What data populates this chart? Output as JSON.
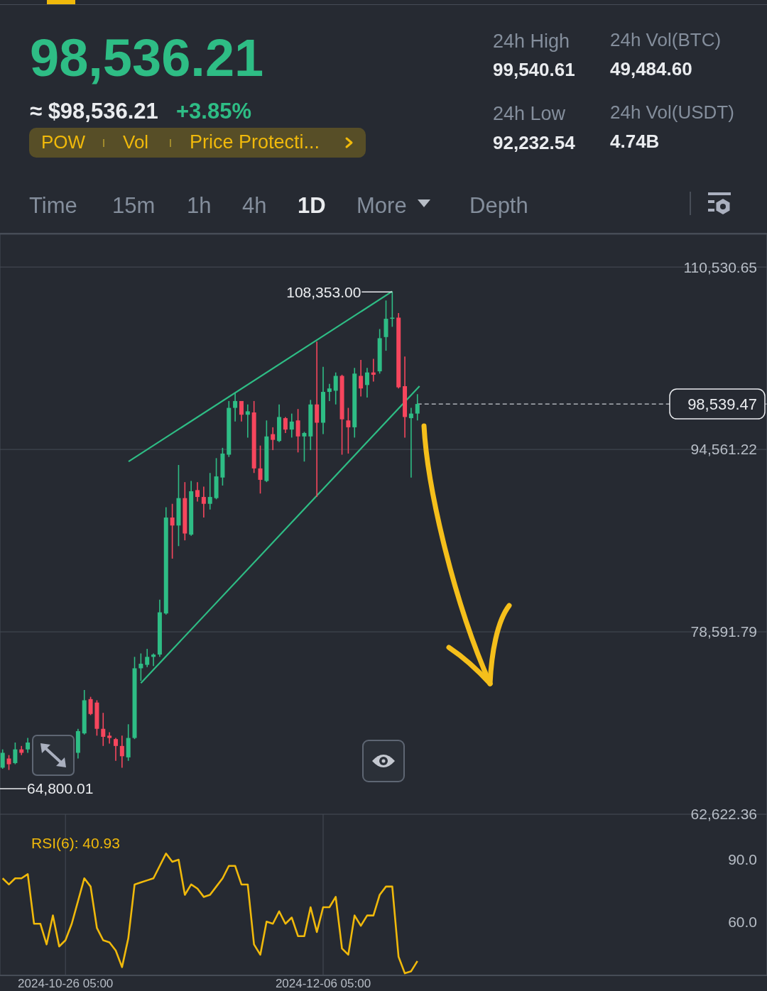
{
  "chart_data": [
    {
      "type": "other",
      "annotations": [
        "98,536.21",
        "≈ $98,536.21",
        "+3.85%",
        "POW",
        "Vol",
        "Price Protecti...",
        "24h High",
        "99,540.61",
        "24h Vol(BTC)",
        "49,484.60",
        "24h Low",
        "92,232.54",
        "24h Vol(USDT)",
        "4.74B",
        "Time",
        "15m",
        "1h",
        "4h",
        "1D",
        "More",
        "Depth"
      ]
    },
    {
      "type": "candlestick",
      "x": [
        "2024-10-16T05:00",
        "2024-10-17T05:00",
        "2024-10-18T05:00",
        "2024-10-19T05:00",
        "2024-10-20T05:00",
        "2024-10-28T05:00",
        "2024-10-29T05:00",
        "2024-10-30T05:00",
        "2024-10-31T05:00",
        "2024-11-01T05:00",
        "2024-11-02T05:00",
        "2024-11-03T05:00",
        "2024-11-04T05:00",
        "2024-11-05T05:00",
        "2024-11-06T05:00",
        "2024-11-07T05:00",
        "2024-11-08T05:00",
        "2024-11-09T05:00",
        "2024-11-10T05:00",
        "2024-11-11T05:00",
        "2024-11-12T05:00",
        "2024-11-13T05:00",
        "2024-11-14T05:00",
        "2024-11-15T05:00",
        "2024-11-16T05:00",
        "2024-11-17T05:00",
        "2024-11-18T05:00",
        "2024-11-19T05:00",
        "2024-11-20T05:00",
        "2024-11-21T05:00",
        "2024-11-22T05:00",
        "2024-11-23T05:00",
        "2024-11-24T05:00",
        "2024-11-25T05:00",
        "2024-11-26T05:00",
        "2024-11-27T05:00",
        "2024-11-28T05:00",
        "2024-11-29T05:00",
        "2024-11-30T05:00",
        "2024-12-01T05:00",
        "2024-12-02T05:00",
        "2024-12-03T05:00",
        "2024-12-04T05:00",
        "2024-12-05T05:00",
        "2024-12-06T05:00",
        "2024-12-07T05:00",
        "2024-12-08T05:00",
        "2024-12-09T05:00",
        "2024-12-10T05:00",
        "2024-12-11T05:00",
        "2024-12-12T05:00",
        "2024-12-13T05:00",
        "2024-12-14T05:00",
        "2024-12-15T05:00",
        "2024-12-16T05:00",
        "2024-12-17T05:00",
        "2024-12-18T05:00",
        "2024-12-19T05:00",
        "2024-12-20T05:00",
        "2024-12-21T05:00"
      ],
      "ohlc": [
        [
          66700,
          68300,
          66600,
          68000
        ],
        [
          67500,
          67800,
          66500,
          67000
        ],
        [
          67100,
          68900,
          67000,
          68300
        ],
        [
          68300,
          68600,
          67800,
          68000
        ],
        [
          68300,
          69300,
          68000,
          68900
        ],
        [
          68000,
          70100,
          67500,
          69900
        ],
        [
          69700,
          73500,
          69600,
          72600
        ],
        [
          72700,
          72900,
          71300,
          71400
        ],
        [
          72400,
          72600,
          69500,
          70100
        ],
        [
          70100,
          71500,
          68600,
          69400
        ],
        [
          69500,
          69800,
          68800,
          69300
        ],
        [
          69200,
          69300,
          67300,
          68600
        ],
        [
          68600,
          69500,
          66700,
          67700
        ],
        [
          67600,
          70500,
          67300,
          69300
        ],
        [
          69300,
          76400,
          69200,
          75400
        ],
        [
          75400,
          76700,
          74300,
          75800
        ],
        [
          75700,
          77100,
          75500,
          76400
        ],
        [
          76400,
          76700,
          75600,
          76600
        ],
        [
          76600,
          81400,
          76400,
          80300
        ],
        [
          80200,
          89500,
          80100,
          88600
        ],
        [
          88600,
          89800,
          85000,
          87900
        ],
        [
          87900,
          93200,
          86100,
          90300
        ],
        [
          90300,
          91700,
          86600,
          87200
        ],
        [
          87100,
          91800,
          87000,
          90900
        ],
        [
          91000,
          91700,
          90000,
          90400
        ],
        [
          90400,
          91300,
          88600,
          89800
        ],
        [
          89800,
          92500,
          89300,
          90400
        ],
        [
          90300,
          93800,
          90200,
          92200
        ],
        [
          92100,
          94700,
          91400,
          94200
        ],
        [
          94100,
          98800,
          93900,
          98200
        ],
        [
          98200,
          99500,
          97000,
          98800
        ],
        [
          98800,
          98800,
          97000,
          97600
        ],
        [
          97600,
          98500,
          95600,
          97900
        ],
        [
          97800,
          98800,
          92500,
          92900
        ],
        [
          92900,
          94900,
          90700,
          91900
        ],
        [
          91800,
          97100,
          91700,
          95700
        ],
        [
          95900,
          96500,
          94500,
          95400
        ],
        [
          95300,
          98500,
          95200,
          97400
        ],
        [
          97300,
          97400,
          96000,
          96300
        ],
        [
          96300,
          97700,
          95600,
          97000
        ],
        [
          97100,
          98100,
          94300,
          95700
        ],
        [
          95700,
          96100,
          93500,
          96000
        ],
        [
          95700,
          98900,
          94500,
          98500
        ],
        [
          98500,
          104000,
          90400,
          96900
        ],
        [
          96900,
          101800,
          95900,
          99600
        ],
        [
          99600,
          100300,
          98800,
          99900
        ],
        [
          99700,
          101300,
          98500,
          101000
        ],
        [
          101000,
          101100,
          94100,
          97200
        ],
        [
          97100,
          98200,
          94200,
          96500
        ],
        [
          96500,
          101700,
          95600,
          101200
        ],
        [
          101000,
          102400,
          99200,
          99900
        ],
        [
          100200,
          101700,
          99100,
          101300
        ],
        [
          101300,
          102500,
          100500,
          101100
        ],
        [
          101400,
          105100,
          101200,
          104300
        ],
        [
          104400,
          107600,
          103200,
          106000
        ],
        [
          106000,
          108353,
          105300,
          106100
        ],
        [
          106100,
          106500,
          99900,
          100000
        ],
        [
          100100,
          102700,
          95600,
          97400
        ],
        [
          97300,
          98200,
          92100,
          97700
        ],
        [
          97700,
          99400,
          97100,
          98539.47
        ]
      ],
      "colors": [
        "#2ebd85",
        "#f6465d",
        "#2ebd85",
        "#f6465d",
        "#2ebd85",
        "#2ebd85",
        "#2ebd85",
        "#f6465d",
        "#f6465d",
        "#f6465d",
        "#f6465d",
        "#f6465d",
        "#f6465d",
        "#2ebd85",
        "#2ebd85",
        "#2ebd85",
        "#2ebd85",
        "#2ebd85",
        "#2ebd85",
        "#2ebd85",
        "#f6465d",
        "#2ebd85",
        "#f6465d",
        "#2ebd85",
        "#f6465d",
        "#f6465d",
        "#2ebd85",
        "#2ebd85",
        "#2ebd85",
        "#2ebd85",
        "#2ebd85",
        "#f6465d",
        "#2ebd85",
        "#f6465d",
        "#f6465d",
        "#2ebd85",
        "#f6465d",
        "#2ebd85",
        "#f6465d",
        "#2ebd85",
        "#f6465d",
        "#2ebd85",
        "#2ebd85",
        "#f6465d",
        "#2ebd85",
        "#2ebd85",
        "#2ebd85",
        "#f6465d",
        "#f6465d",
        "#2ebd85",
        "#f6465d",
        "#2ebd85",
        "#f6465d",
        "#2ebd85",
        "#2ebd85",
        "#2ebd85",
        "#f6465d",
        "#f6465d",
        "#2ebd85",
        "#2ebd85"
      ],
      "series": [
        {
          "type": "line",
          "x": [
            "2024-11-05T06:00",
            "2024-12-17T05:00"
          ],
          "values": [
            93500,
            108400
          ],
          "color": "#2ebd85"
        },
        {
          "type": "line",
          "x": [
            "2024-11-07T05:00",
            "2024-12-21T13:00"
          ],
          "values": [
            74100,
            100100
          ],
          "color": "#2ebd85"
        }
      ],
      "xlim": [
        "2024-10-15T19:00",
        "2025-02-14T20:00"
      ],
      "xticks": [
        {
          "value": "2024-10-26T05:00",
          "label": null
        },
        {
          "value": "2024-12-06T05:00",
          "label": null
        }
      ],
      "ylim": [
        62622.36,
        113400
      ],
      "yticks": [
        {
          "value": 62622.36,
          "label": "62,622.36"
        },
        {
          "value": 78591.79,
          "label": "78,591.79"
        },
        {
          "value": 94561.22,
          "label": "94,561.22"
        },
        {
          "value": 110530.65,
          "label": "110,530.65"
        }
      ],
      "grid": true,
      "tick_labels": "y",
      "ref_lines": [
        {
          "axis": "y",
          "value": 98539.47,
          "label": "98,539.47",
          "line_style": "dashed",
          "color": "#c8ccd2"
        }
      ],
      "annotations": [
        {
          "text": "108,353.00",
          "x": "2024-12-17T05:00",
          "y": 108353
        },
        "64,800.01"
      ]
    },
    {
      "type": "line",
      "x": [
        "2024-10-16T05:00",
        "2024-10-17T05:00",
        "2024-10-18T05:00",
        "2024-10-19T05:00",
        "2024-10-20T05:00",
        "2024-10-21T05:00",
        "2024-10-22T05:00",
        "2024-10-23T05:00",
        "2024-10-24T05:00",
        "2024-10-25T05:00",
        "2024-10-26T05:00",
        "2024-10-27T05:00",
        "2024-10-28T05:00",
        "2024-10-29T05:00",
        "2024-10-30T05:00",
        "2024-10-31T05:00",
        "2024-11-01T05:00",
        "2024-11-02T05:00",
        "2024-11-03T05:00",
        "2024-11-04T05:00",
        "2024-11-05T05:00",
        "2024-11-06T05:00",
        "2024-11-07T05:00",
        "2024-11-08T05:00",
        "2024-11-09T05:00",
        "2024-11-10T05:00",
        "2024-11-11T05:00",
        "2024-11-12T05:00",
        "2024-11-13T05:00",
        "2024-11-14T05:00",
        "2024-11-15T05:00",
        "2024-11-16T05:00",
        "2024-11-17T05:00",
        "2024-11-18T05:00",
        "2024-11-19T05:00",
        "2024-11-20T05:00",
        "2024-11-21T05:00",
        "2024-11-22T05:00",
        "2024-11-23T05:00",
        "2024-11-24T05:00",
        "2024-11-25T05:00",
        "2024-11-26T05:00",
        "2024-11-27T05:00",
        "2024-11-28T05:00",
        "2024-11-29T05:00",
        "2024-11-30T05:00",
        "2024-12-01T05:00",
        "2024-12-02T05:00",
        "2024-12-03T05:00",
        "2024-12-04T05:00",
        "2024-12-05T05:00",
        "2024-12-06T05:00",
        "2024-12-07T05:00",
        "2024-12-08T05:00",
        "2024-12-09T05:00",
        "2024-12-10T05:00",
        "2024-12-11T05:00",
        "2024-12-12T05:00",
        "2024-12-13T05:00",
        "2024-12-14T05:00",
        "2024-12-15T05:00",
        "2024-12-16T05:00",
        "2024-12-17T05:00",
        "2024-12-18T05:00",
        "2024-12-19T05:00",
        "2024-12-20T05:00",
        "2024-12-21T05:00"
      ],
      "series": [
        {
          "name": "RSI(6): 40.93",
          "color": "#f0b90b",
          "values": [
            81,
            78,
            81,
            81,
            83,
            59,
            59,
            49,
            63,
            48,
            51,
            59,
            70,
            81,
            77,
            57,
            51,
            50,
            46,
            38,
            52,
            78,
            79,
            80,
            81,
            87,
            93,
            89,
            90,
            73,
            78,
            76,
            72,
            73,
            77,
            81,
            87,
            87,
            78,
            78,
            49,
            44,
            60,
            59,
            65,
            59,
            62,
            53,
            53,
            67,
            55,
            67,
            67,
            72,
            47,
            44,
            63,
            58,
            63,
            63,
            73,
            77,
            77,
            43,
            35,
            36,
            40.93
          ]
        }
      ],
      "xlim": [
        "2024-10-15T19:00",
        "2025-02-14T20:00"
      ],
      "xticks": [
        {
          "value": "2024-10-26T05:00",
          "label": "2024-10-26 05:00"
        },
        {
          "value": "2024-12-06T05:00",
          "label": "2024-12-06 05:00"
        }
      ],
      "ylim": [
        34,
        112
      ],
      "yticks": [
        {
          "value": 60,
          "label": "60.0"
        },
        {
          "value": 90,
          "label": "90.0"
        }
      ],
      "grid": "x",
      "legend": "top left"
    }
  ]
}
